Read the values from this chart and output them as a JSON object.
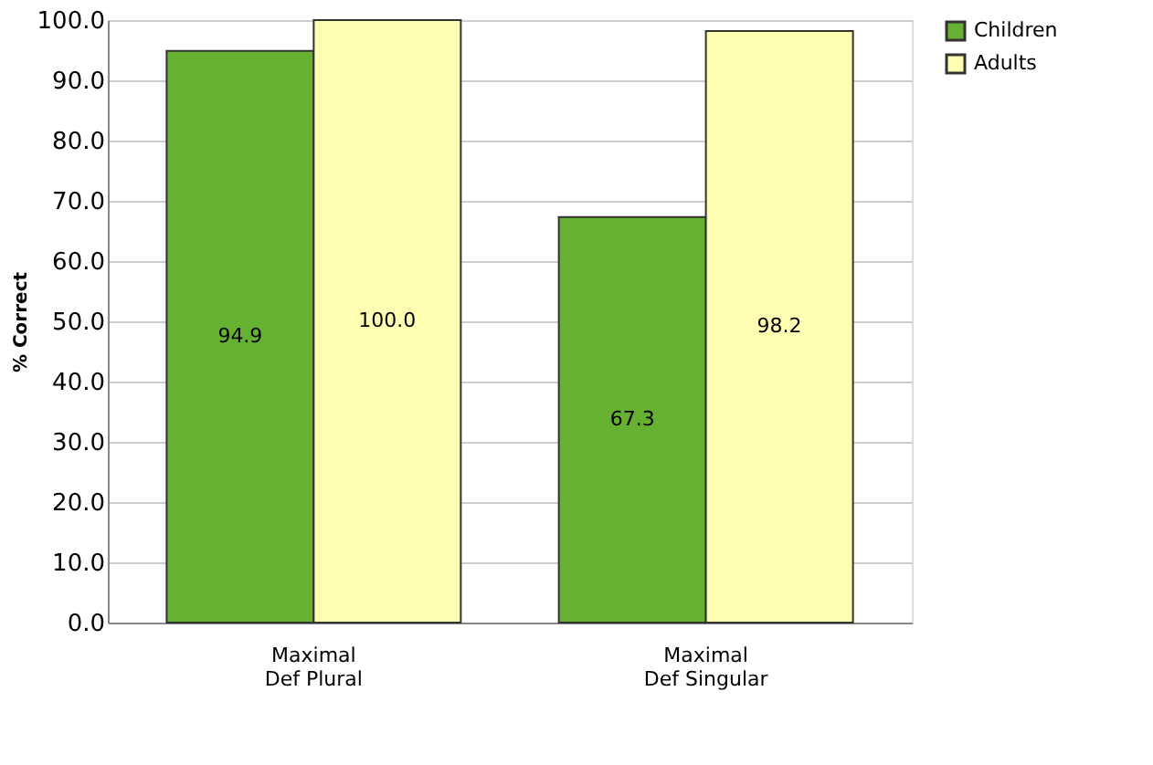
{
  "chart_data": {
    "type": "bar",
    "ylabel": "% Correct",
    "categories": [
      "Maximal\nDef Plural",
      "Maximal\nDef Singular"
    ],
    "series": [
      {
        "name": "Children",
        "color": "#66b032",
        "values": [
          94.9,
          67.3
        ],
        "value_labels": [
          "94.9",
          "67.3"
        ]
      },
      {
        "name": "Adults",
        "color": "#ffffb3",
        "values": [
          100.0,
          98.2
        ],
        "value_labels": [
          "100.0",
          "98.2"
        ]
      }
    ],
    "ylim": [
      0,
      100
    ],
    "yticks": [
      {
        "value": 0,
        "label": "0.0"
      },
      {
        "value": 10,
        "label": "10.0"
      },
      {
        "value": 20,
        "label": "20.0"
      },
      {
        "value": 30,
        "label": "30.0"
      },
      {
        "value": 40,
        "label": "40.0"
      },
      {
        "value": 50,
        "label": "50.0"
      },
      {
        "value": 60,
        "label": "60.0"
      },
      {
        "value": 70,
        "label": "70.0"
      },
      {
        "value": 80,
        "label": "80.0"
      },
      {
        "value": 90,
        "label": "90.0"
      },
      {
        "value": 100,
        "label": "100.0"
      }
    ],
    "grid": "y",
    "legend": "right"
  }
}
